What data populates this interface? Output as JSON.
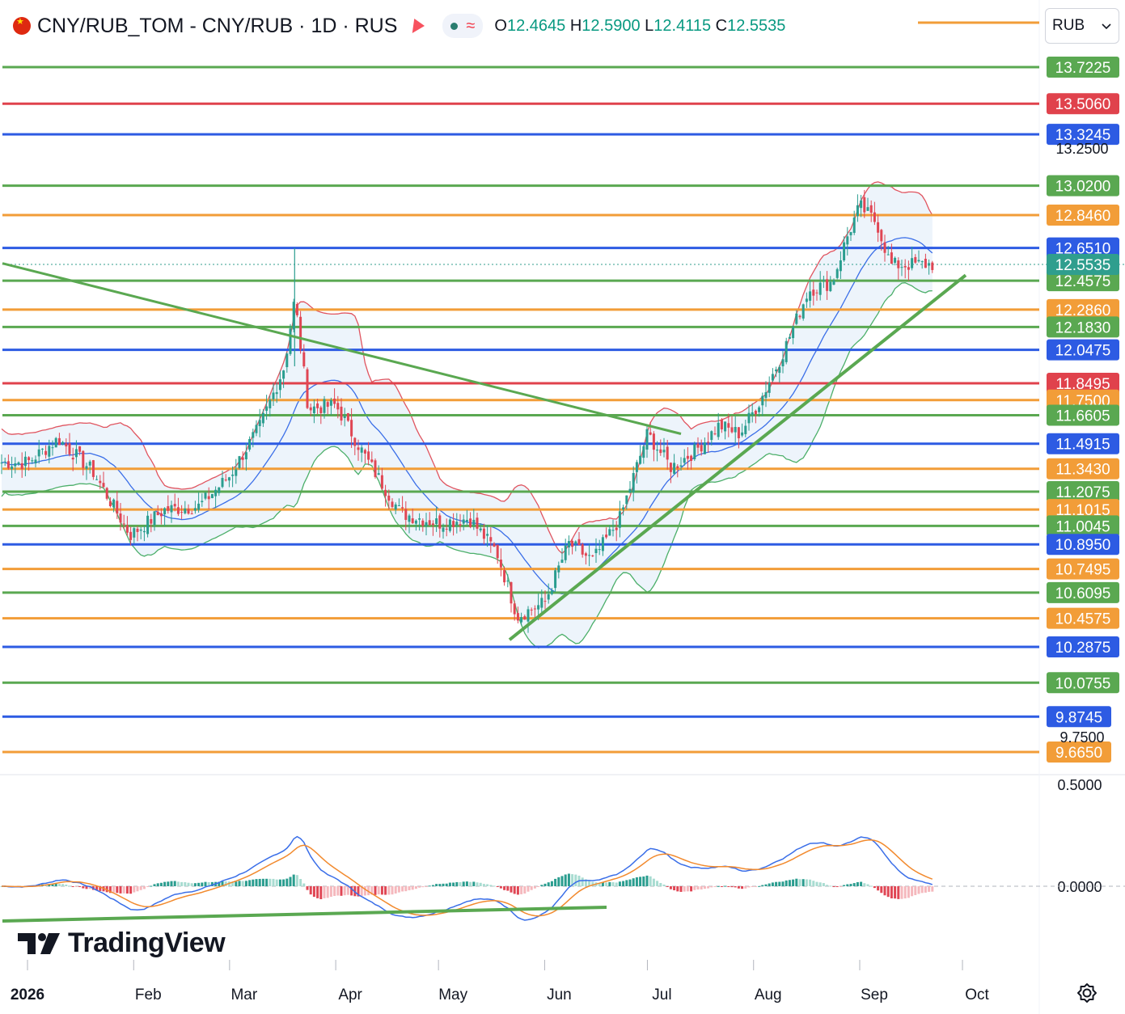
{
  "header": {
    "symbol": "CNY/RUB_TOM - CNY/RUB · 1D · RUS",
    "open_label": "O",
    "open": "12.4645",
    "high_label": "H",
    "high": "12.5900",
    "low_label": "L",
    "low": "12.4115",
    "close_label": "C",
    "close": "12.5535",
    "currency": "RUB",
    "flag_icon": "china-flag-icon"
  },
  "branding": {
    "logo_text": "TradingView"
  },
  "colors": {
    "green_level": "#5aa851",
    "red_level": "#e0424c",
    "blue_level": "#2d5be3",
    "orange_level": "#f29d38",
    "candle_up": "#2a9d8f",
    "candle_down": "#e04654",
    "bb_upper": "#e05560",
    "bb_middle": "#3a6ee8",
    "bb_lower": "#4caf6a",
    "bb_fill": "#e8f1fa",
    "macd_line": "#3a6ee8",
    "signal_line": "#f28a2e",
    "trendline": "#5aa851",
    "price_tag": "#2f9e8e"
  },
  "chart_data": [
    {
      "type": "candlestick",
      "panel": "price",
      "currency": "RUB",
      "x_tick_labels": [
        "2026",
        "Feb",
        "Mar",
        "Apr",
        "May",
        "Jun",
        "Jul",
        "Aug",
        "Sep",
        "Oct"
      ],
      "y_tick_labels_visible": [
        "13.2500",
        "9.7500"
      ],
      "ylim": [
        9.6,
        13.8
      ],
      "last_price": 12.5535,
      "horizontal_levels": [
        {
          "price": "13.7225",
          "color": "green"
        },
        {
          "price": "13.5060",
          "color": "red"
        },
        {
          "price": "13.3245",
          "color": "blue"
        },
        {
          "price": "13.0200",
          "color": "green"
        },
        {
          "price": "12.8460",
          "color": "orange"
        },
        {
          "price": "12.6510",
          "color": "blue"
        },
        {
          "price": "12.4575",
          "color": "green"
        },
        {
          "price": "12.2860",
          "color": "orange"
        },
        {
          "price": "12.1830",
          "color": "green"
        },
        {
          "price": "12.0475",
          "color": "blue"
        },
        {
          "price": "11.8495",
          "color": "red"
        },
        {
          "price": "11.7500",
          "color": "orange"
        },
        {
          "price": "11.6605",
          "color": "green"
        },
        {
          "price": "11.4915",
          "color": "blue"
        },
        {
          "price": "11.3430",
          "color": "orange"
        },
        {
          "price": "11.2075",
          "color": "green"
        },
        {
          "price": "11.1015",
          "color": "orange"
        },
        {
          "price": "11.0045",
          "color": "green"
        },
        {
          "price": "10.8950",
          "color": "blue"
        },
        {
          "price": "10.7495",
          "color": "orange"
        },
        {
          "price": "10.6095",
          "color": "green"
        },
        {
          "price": "10.4575",
          "color": "orange"
        },
        {
          "price": "10.2875",
          "color": "blue"
        },
        {
          "price": "10.0755",
          "color": "green"
        },
        {
          "price": "9.8745",
          "color": "blue"
        },
        {
          "price": "9.6650",
          "color": "orange"
        }
      ],
      "close_path": [
        {
          "date": "2026-01-01",
          "close": 11.38
        },
        {
          "date": "2026-01-10",
          "close": 11.52
        },
        {
          "date": "2026-01-20",
          "close": 11.33
        },
        {
          "date": "2026-01-31",
          "close": 10.95
        },
        {
          "date": "2026-02-10",
          "close": 11.1
        },
        {
          "date": "2026-02-20",
          "close": 11.12
        },
        {
          "date": "2026-03-01",
          "close": 11.3
        },
        {
          "date": "2026-03-10",
          "close": 11.6
        },
        {
          "date": "2026-03-17",
          "close": 11.95
        },
        {
          "date": "2026-03-20",
          "close": 12.35
        },
        {
          "date": "2026-03-24",
          "close": 11.7
        },
        {
          "date": "2026-04-01",
          "close": 11.72
        },
        {
          "date": "2026-04-10",
          "close": 11.4
        },
        {
          "date": "2026-04-20",
          "close": 11.08
        },
        {
          "date": "2026-05-01",
          "close": 11.02
        },
        {
          "date": "2026-05-10",
          "close": 11.05
        },
        {
          "date": "2026-05-18",
          "close": 10.85
        },
        {
          "date": "2026-05-24",
          "close": 10.47
        },
        {
          "date": "2026-06-01",
          "close": 10.55
        },
        {
          "date": "2026-06-08",
          "close": 10.9
        },
        {
          "date": "2026-06-15",
          "close": 10.8
        },
        {
          "date": "2026-06-23",
          "close": 11.05
        },
        {
          "date": "2026-07-01",
          "close": 11.55
        },
        {
          "date": "2026-07-08",
          "close": 11.35
        },
        {
          "date": "2026-07-15",
          "close": 11.45
        },
        {
          "date": "2026-07-22",
          "close": 11.6
        },
        {
          "date": "2026-07-28",
          "close": 11.55
        },
        {
          "date": "2026-08-03",
          "close": 11.75
        },
        {
          "date": "2026-08-10",
          "close": 12.05
        },
        {
          "date": "2026-08-17",
          "close": 12.4
        },
        {
          "date": "2026-08-24",
          "close": 12.45
        },
        {
          "date": "2026-08-28",
          "close": 12.7
        },
        {
          "date": "2026-09-01",
          "close": 12.9
        },
        {
          "date": "2026-09-06",
          "close": 12.8
        },
        {
          "date": "2026-09-10",
          "close": 12.55
        },
        {
          "date": "2026-09-17",
          "close": 12.5535
        }
      ],
      "overlays": [
        "Bollinger Bands",
        "trendlines"
      ]
    },
    {
      "type": "line",
      "panel": "MACD",
      "y_tick_labels": [
        "0.5000",
        "0.0000"
      ],
      "series": [
        {
          "values": "macd",
          "color": "blue"
        },
        {
          "values": "signal",
          "color": "orange"
        },
        {
          "values": "histogram",
          "color": "teal/red bars"
        }
      ]
    }
  ]
}
